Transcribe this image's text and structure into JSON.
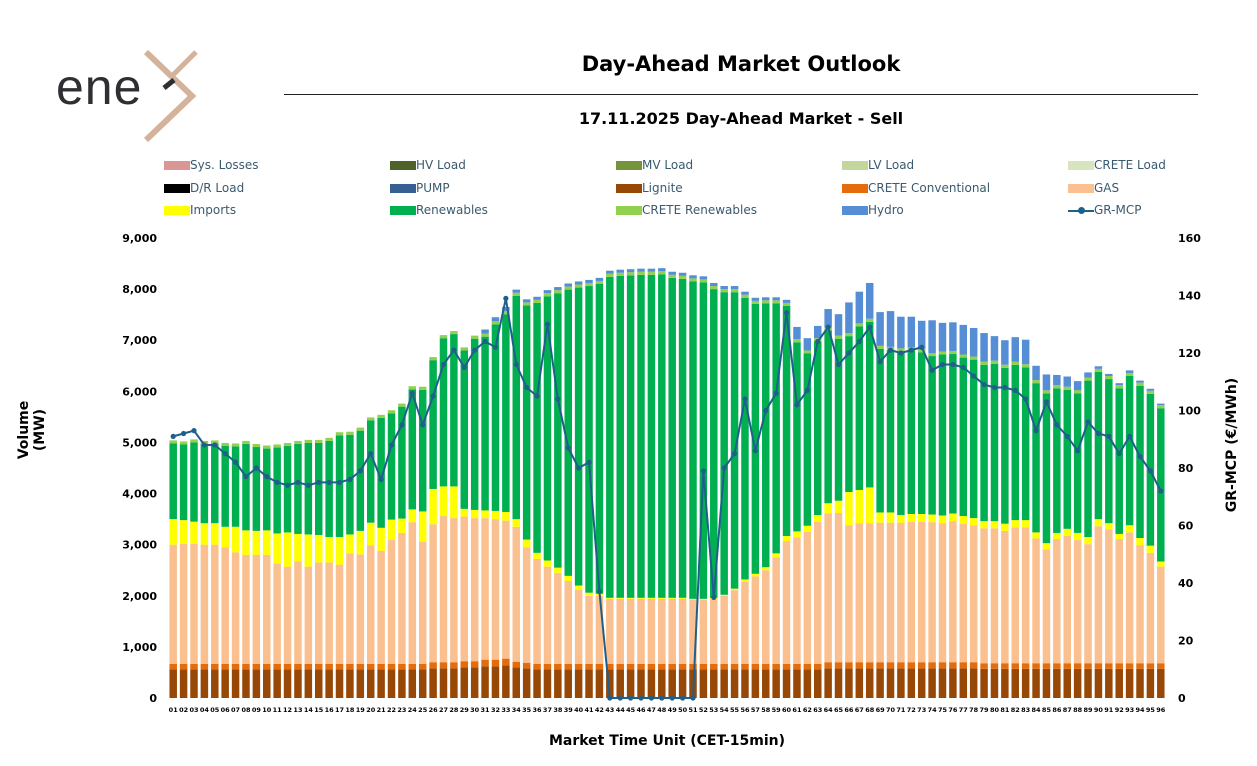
{
  "header": {
    "logo_text": "ene",
    "title": "Day-Ahead Market Outlook"
  },
  "chart_data": {
    "type": "bar",
    "title": "17.11.2025  Day-Ahead Market - Sell",
    "xlabel": "Market Time Unit (CET-15min)",
    "ylabel": "Volume (MW)",
    "y2label": "GR-MCP (€/MWh)",
    "ylim": [
      0,
      9000
    ],
    "y2lim": [
      0,
      160
    ],
    "yticks": [
      "0",
      "1,000",
      "2,000",
      "3,000",
      "4,000",
      "5,000",
      "6,000",
      "7,000",
      "8,000",
      "9,000"
    ],
    "y2ticks": [
      "0",
      "20",
      "40",
      "60",
      "80",
      "100",
      "120",
      "140",
      "160"
    ],
    "stacked": true,
    "legend": [
      {
        "name": "Sys. Losses",
        "color": "#d99694"
      },
      {
        "name": "HV Load",
        "color": "#4f6228"
      },
      {
        "name": "MV Load",
        "color": "#77933c"
      },
      {
        "name": "LV Load",
        "color": "#c3d69b"
      },
      {
        "name": "CRETE Load",
        "color": "#d7e4bd"
      },
      {
        "name": "D/R Load",
        "color": "#000000"
      },
      {
        "name": "PUMP",
        "color": "#376092"
      },
      {
        "name": "Lignite",
        "color": "#974706"
      },
      {
        "name": "CRETE Conventional",
        "color": "#e46c0a"
      },
      {
        "name": "GAS",
        "color": "#fac090"
      },
      {
        "name": "Imports",
        "color": "#ffff00"
      },
      {
        "name": "Renewables",
        "color": "#00b050"
      },
      {
        "name": "CRETE Renewables",
        "color": "#92d050"
      },
      {
        "name": "Hydro",
        "color": "#558ed5"
      },
      {
        "name": "GR-MCP",
        "color": "#1f5f8b"
      }
    ],
    "categories": [
      "01",
      "02",
      "03",
      "04",
      "05",
      "06",
      "07",
      "08",
      "09",
      "10",
      "11",
      "12",
      "13",
      "14",
      "15",
      "16",
      "17",
      "18",
      "19",
      "20",
      "21",
      "22",
      "23",
      "24",
      "25",
      "26",
      "27",
      "28",
      "29",
      "30",
      "31",
      "32",
      "33",
      "34",
      "35",
      "36",
      "37",
      "38",
      "39",
      "40",
      "41",
      "42",
      "43",
      "44",
      "45",
      "46",
      "47",
      "48",
      "49",
      "50",
      "51",
      "52",
      "53",
      "54",
      "55",
      "56",
      "57",
      "58",
      "59",
      "60",
      "61",
      "62",
      "63",
      "64",
      "65",
      "66",
      "67",
      "68",
      "69",
      "70",
      "71",
      "72",
      "73",
      "74",
      "75",
      "76",
      "77",
      "78",
      "79",
      "80",
      "81",
      "82",
      "83",
      "84",
      "85",
      "86",
      "87",
      "88",
      "89",
      "90",
      "91",
      "92",
      "93",
      "94",
      "95",
      "96"
    ],
    "series": [
      {
        "name": "Lignite",
        "values": [
          560,
          560,
          560,
          560,
          560,
          560,
          560,
          560,
          560,
          560,
          560,
          560,
          560,
          560,
          560,
          560,
          560,
          560,
          560,
          560,
          560,
          560,
          560,
          560,
          560,
          580,
          580,
          580,
          600,
          600,
          620,
          620,
          640,
          600,
          580,
          560,
          560,
          560,
          560,
          560,
          560,
          560,
          560,
          560,
          560,
          560,
          560,
          560,
          560,
          560,
          560,
          560,
          560,
          560,
          560,
          560,
          560,
          560,
          560,
          560,
          560,
          560,
          560,
          580,
          580,
          580,
          580,
          580,
          580,
          580,
          580,
          580,
          580,
          580,
          580,
          580,
          580,
          580,
          570,
          570,
          570,
          570,
          570,
          570,
          570,
          570,
          570,
          570,
          570,
          570,
          570,
          570,
          570,
          570,
          570,
          570
        ]
      },
      {
        "name": "CRETE Conventional",
        "values": [
          110,
          110,
          110,
          110,
          110,
          110,
          110,
          110,
          110,
          110,
          110,
          110,
          110,
          110,
          110,
          110,
          110,
          110,
          110,
          110,
          110,
          110,
          110,
          110,
          110,
          120,
          120,
          120,
          120,
          120,
          130,
          130,
          130,
          110,
          110,
          110,
          110,
          110,
          110,
          110,
          110,
          110,
          110,
          110,
          110,
          110,
          110,
          110,
          110,
          110,
          110,
          110,
          110,
          110,
          110,
          110,
          110,
          110,
          110,
          110,
          110,
          110,
          110,
          120,
          120,
          120,
          120,
          120,
          120,
          120,
          120,
          120,
          120,
          120,
          120,
          120,
          120,
          120,
          110,
          110,
          110,
          110,
          110,
          110,
          110,
          110,
          110,
          110,
          110,
          110,
          110,
          110,
          110,
          110,
          110,
          110
        ]
      },
      {
        "name": "GAS",
        "values": [
          2330,
          2350,
          2350,
          2330,
          2330,
          2280,
          2180,
          2130,
          2130,
          2130,
          1960,
          1900,
          2000,
          1900,
          1980,
          1980,
          1940,
          2160,
          2140,
          2320,
          2210,
          2420,
          2560,
          2770,
          2390,
          2700,
          2860,
          2820,
          2830,
          2800,
          2770,
          2750,
          2700,
          2640,
          2260,
          2050,
          1900,
          1780,
          1620,
          1450,
          1330,
          1330,
          1270,
          1270,
          1270,
          1270,
          1270,
          1270,
          1270,
          1270,
          1250,
          1250,
          1270,
          1330,
          1440,
          1600,
          1710,
          1830,
          2080,
          2400,
          2470,
          2580,
          2780,
          2910,
          2920,
          2680,
          2720,
          2720,
          2730,
          2730,
          2730,
          2750,
          2750,
          2740,
          2720,
          2760,
          2710,
          2680,
          2640,
          2640,
          2590,
          2660,
          2660,
          2440,
          2230,
          2430,
          2490,
          2410,
          2330,
          2680,
          2620,
          2430,
          2560,
          2310,
          2160,
          1890
        ]
      },
      {
        "name": "Imports",
        "values": [
          500,
          460,
          430,
          420,
          420,
          400,
          500,
          480,
          470,
          480,
          590,
          670,
          540,
          630,
          540,
          500,
          540,
          370,
          460,
          440,
          450,
          400,
          280,
          250,
          590,
          690,
          580,
          620,
          150,
          160,
          150,
          160,
          170,
          150,
          150,
          120,
          120,
          100,
          100,
          80,
          60,
          40,
          20,
          20,
          20,
          20,
          20,
          20,
          20,
          20,
          20,
          20,
          20,
          20,
          30,
          50,
          50,
          60,
          80,
          100,
          120,
          120,
          130,
          200,
          240,
          650,
          650,
          700,
          200,
          200,
          150,
          150,
          150,
          150,
          150,
          150,
          150,
          140,
          140,
          140,
          140,
          140,
          140,
          120,
          120,
          120,
          140,
          140,
          140,
          140,
          120,
          100,
          140,
          140,
          140,
          100
        ]
      },
      {
        "name": "Renewables",
        "values": [
          1480,
          1480,
          1550,
          1550,
          1560,
          1580,
          1570,
          1690,
          1640,
          1600,
          1680,
          1690,
          1760,
          1790,
          1800,
          1880,
          1990,
          1950,
          1960,
          2000,
          2150,
          2080,
          2190,
          2350,
          2380,
          2520,
          2900,
          2980,
          3100,
          3350,
          3400,
          3650,
          3870,
          4370,
          4580,
          4890,
          5170,
          5370,
          5600,
          5830,
          6000,
          6060,
          6280,
          6300,
          6310,
          6320,
          6320,
          6330,
          6260,
          6240,
          6210,
          6190,
          6040,
          5920,
          5800,
          5510,
          5280,
          5160,
          4890,
          4500,
          3700,
          3370,
          3400,
          3380,
          3170,
          3050,
          3200,
          3240,
          3200,
          3180,
          3200,
          3200,
          3160,
          3100,
          3150,
          3120,
          3100,
          3100,
          3060,
          3080,
          3050,
          3040,
          2990,
          2920,
          2930,
          2830,
          2720,
          2730,
          3060,
          2880,
          2820,
          2850,
          2920,
          2980,
          2970,
          3000
        ]
      },
      {
        "name": "CRETE Renewables",
        "values": [
          60,
          60,
          60,
          60,
          60,
          60,
          60,
          60,
          60,
          60,
          60,
          60,
          60,
          60,
          60,
          60,
          60,
          60,
          60,
          60,
          60,
          60,
          60,
          60,
          60,
          60,
          60,
          60,
          60,
          60,
          60,
          60,
          60,
          60,
          60,
          60,
          60,
          60,
          60,
          60,
          60,
          60,
          60,
          60,
          60,
          60,
          60,
          60,
          60,
          60,
          60,
          60,
          60,
          60,
          60,
          60,
          60,
          60,
          60,
          60,
          60,
          60,
          60,
          60,
          60,
          60,
          60,
          60,
          60,
          60,
          60,
          60,
          60,
          60,
          60,
          60,
          60,
          60,
          60,
          60,
          60,
          60,
          60,
          60,
          60,
          60,
          60,
          60,
          60,
          60,
          60,
          60,
          60,
          60,
          60,
          60
        ]
      },
      {
        "name": "Hydro",
        "values": [
          0,
          0,
          0,
          0,
          0,
          0,
          0,
          0,
          0,
          0,
          0,
          0,
          0,
          0,
          0,
          0,
          0,
          0,
          0,
          0,
          0,
          0,
          0,
          0,
          0,
          0,
          0,
          0,
          0,
          0,
          80,
          80,
          80,
          60,
          60,
          60,
          60,
          60,
          60,
          60,
          60,
          60,
          60,
          60,
          60,
          60,
          60,
          60,
          60,
          60,
          60,
          60,
          60,
          60,
          60,
          60,
          60,
          60,
          60,
          60,
          240,
          240,
          240,
          360,
          420,
          600,
          620,
          700,
          660,
          700,
          620,
          600,
          560,
          640,
          560,
          560,
          580,
          560,
          560,
          480,
          480,
          480,
          480,
          280,
          310,
          200,
          200,
          180,
          100,
          50,
          40,
          40,
          50,
          40,
          40,
          30
        ]
      },
      {
        "name": "GR-MCP",
        "values": [
          91,
          92,
          93,
          88,
          88,
          85,
          82,
          77,
          80,
          77,
          75,
          74,
          75,
          74,
          75,
          75,
          75,
          76,
          79,
          85,
          76,
          88,
          95,
          106,
          95,
          105,
          116,
          121,
          115,
          121,
          124,
          122,
          139,
          116,
          108,
          105,
          130,
          104,
          87,
          80,
          82,
          37,
          0,
          0,
          0,
          0,
          0,
          0,
          0,
          0,
          0,
          79,
          35,
          80,
          85,
          104,
          86,
          100,
          106,
          134,
          102,
          107,
          124,
          129,
          116,
          120,
          124,
          129,
          117,
          121,
          120,
          121,
          122,
          114,
          116,
          116,
          115,
          112,
          109,
          108,
          108,
          107,
          104,
          93,
          103,
          95,
          91,
          86,
          96,
          92,
          91,
          85,
          91,
          84,
          79,
          72
        ]
      }
    ]
  }
}
